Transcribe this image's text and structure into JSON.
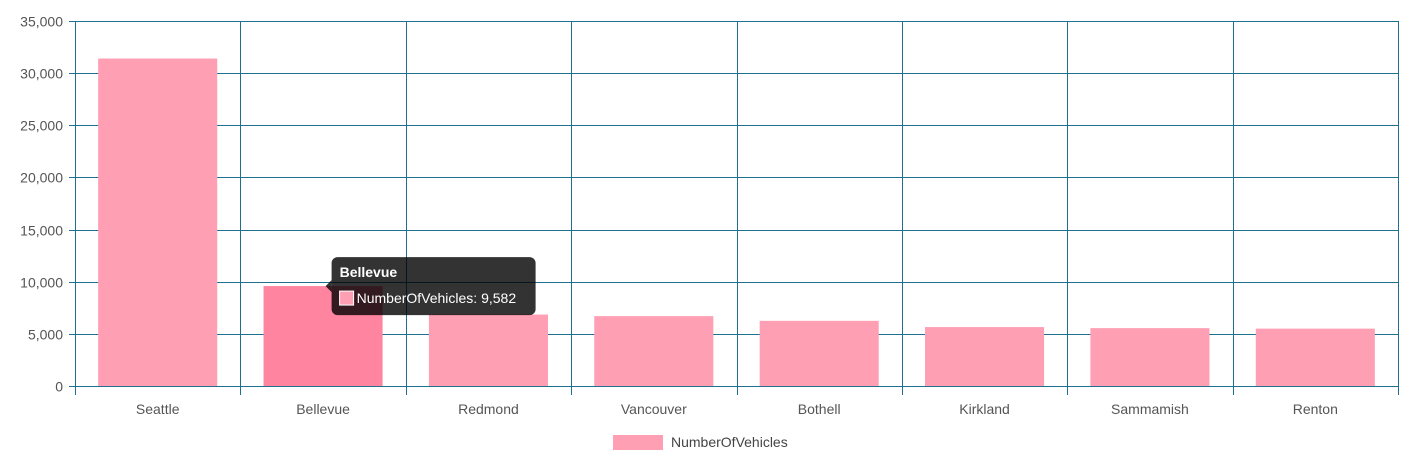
{
  "chart_data": {
    "type": "bar",
    "categories": [
      "Seattle",
      "Bellevue",
      "Redmond",
      "Vancouver",
      "Bothell",
      "Kirkland",
      "Sammamish",
      "Renton"
    ],
    "series": [
      {
        "name": "NumberOfVehicles",
        "values": [
          31400,
          9582,
          6850,
          6700,
          6250,
          5650,
          5550,
          5500
        ]
      }
    ],
    "ylim": [
      0,
      35000
    ],
    "yticks": [
      "35,000",
      "30,000",
      "25,000",
      "20,000",
      "15,000",
      "10,000",
      "5,000",
      "0"
    ],
    "ytick_values": [
      35000,
      30000,
      25000,
      20000,
      15000,
      10000,
      5000,
      0
    ],
    "grid": true,
    "legend_position": "bottom",
    "colors": {
      "bar": "#ff9fb4",
      "bar_hover": "#ff84a0",
      "grid": "#1f6f8f",
      "axis": "#1f6f8f",
      "tooltip_bg": "#000000"
    },
    "tooltip": {
      "category_index": 1,
      "title": "Bellevue",
      "label": "NumberOfVehicles: 9,582"
    }
  }
}
